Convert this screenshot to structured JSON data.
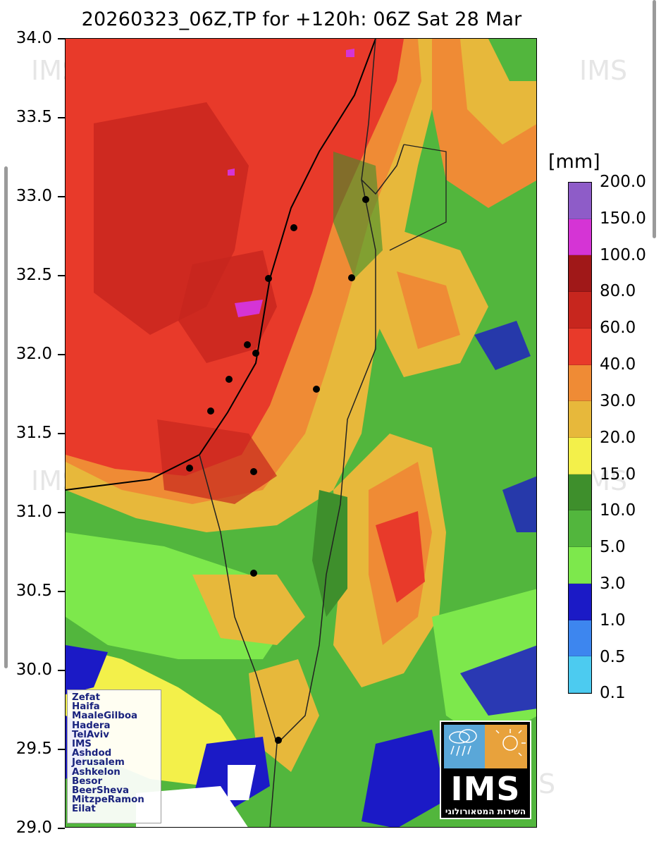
{
  "title": "20260323_06Z,TP for +120h: 06Z Sat 28 Mar",
  "map": {
    "lat_ticks": [
      "34.0",
      "33.5",
      "33.0",
      "32.5",
      "32.0",
      "31.5",
      "31.0",
      "30.5",
      "30.0",
      "29.5",
      "29.0"
    ],
    "unit_label": "[mm]",
    "colorbar": {
      "labels": [
        "200.0",
        "150.0",
        "100.0",
        "80.0",
        "60.0",
        "40.0",
        "30.0",
        "20.0",
        "15.0",
        "10.0",
        "5.0",
        "3.0",
        "1.0",
        "0.5",
        "0.1"
      ],
      "colors": [
        "#8e5cc8",
        "#d534d5",
        "#a01818",
        "#c7261e",
        "#e83a2a",
        "#ef8b35",
        "#e7b83b",
        "#f3f04a",
        "#3e8f2c",
        "#52b63d",
        "#7de84c",
        "#1b1ac6",
        "#3d86ef",
        "#4ccbf0"
      ]
    },
    "legend_cities": [
      "Zefat",
      "Haifa",
      "MaaleGilboa",
      "Hadera",
      "TelAviv",
      "IMS",
      "Ashdod",
      "Jerusalem",
      "Ashkelon",
      "Besor",
      "BeerSheva",
      "MitzpeRamon",
      "Eilat"
    ],
    "logo_text": "IMS",
    "logo_subtext": "השירות המטאורולוגי",
    "watermark": "IMS"
  }
}
